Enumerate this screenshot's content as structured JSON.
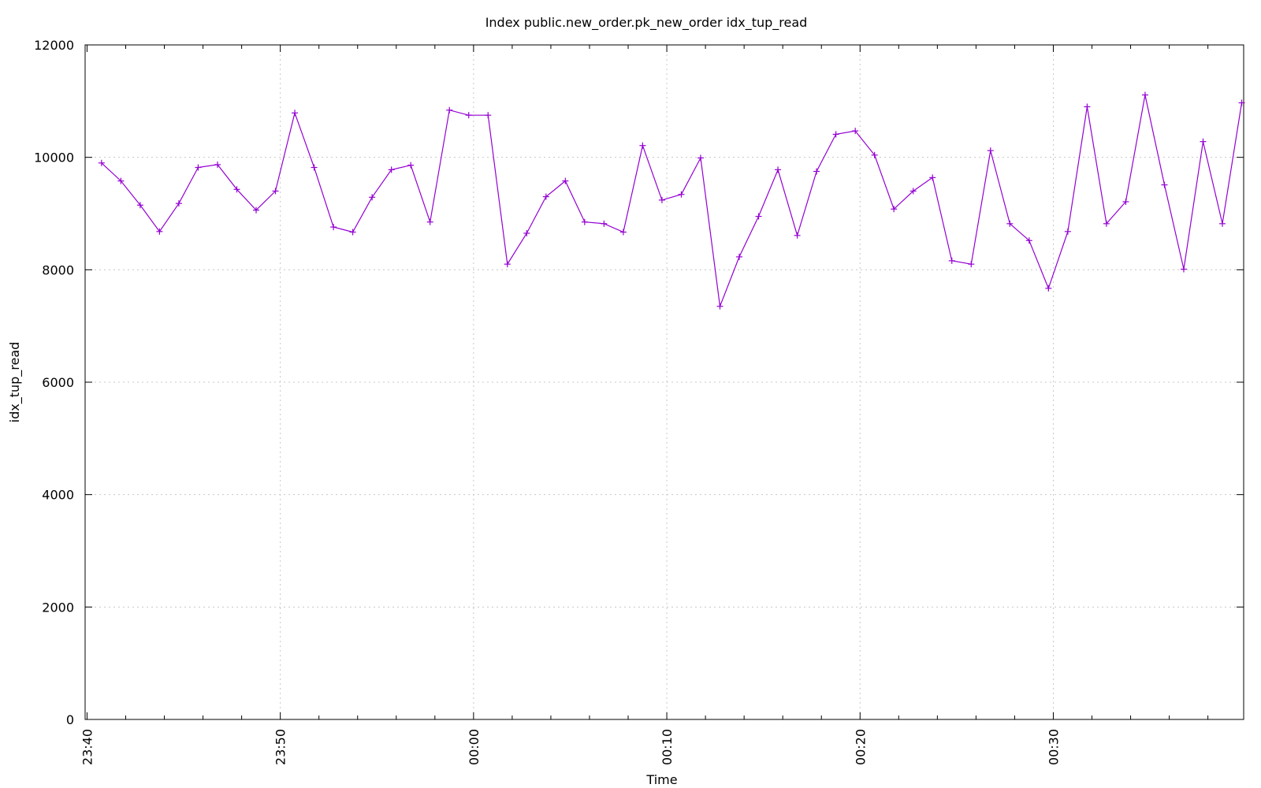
{
  "chart_data": {
    "type": "line",
    "title": "Index public.new_order.pk_new_order idx_tup_read",
    "xlabel": "Time",
    "ylabel": "idx_tup_read",
    "ylim": [
      0,
      12000
    ],
    "yticks": [
      0,
      2000,
      4000,
      6000,
      8000,
      10000,
      12000
    ],
    "xlim_minutes": [
      -0.1,
      59.85
    ],
    "xticks": [
      {
        "label": "23:40",
        "minute": 0
      },
      {
        "label": "23:50",
        "minute": 10
      },
      {
        "label": "00:00",
        "minute": 20
      },
      {
        "label": "00:10",
        "minute": 30
      },
      {
        "label": "00:20",
        "minute": 40
      },
      {
        "label": "00:30",
        "minute": 50
      }
    ],
    "grid": true,
    "series": [
      {
        "color": "#9400d3",
        "marker": "plus",
        "x_minutes": [
          0.75,
          1.75,
          2.75,
          3.75,
          4.75,
          5.75,
          6.75,
          7.75,
          8.75,
          9.75,
          10.75,
          11.75,
          12.75,
          13.75,
          14.75,
          15.75,
          16.75,
          17.75,
          18.75,
          19.75,
          20.75,
          21.75,
          22.75,
          23.75,
          24.75,
          25.75,
          26.75,
          27.75,
          28.75,
          29.75,
          30.75,
          31.75,
          32.75,
          33.75,
          34.75,
          35.75,
          36.75,
          37.75,
          38.75,
          39.75,
          40.75,
          41.75,
          42.75,
          43.75,
          44.75,
          45.75,
          46.75,
          47.75,
          48.75,
          49.75,
          50.75,
          51.75,
          52.75,
          53.75,
          54.75,
          55.75,
          56.75,
          57.75,
          58.75,
          59.75
        ],
        "values": [
          9900,
          9580,
          9150,
          8680,
          9180,
          9820,
          9870,
          9430,
          9060,
          9400,
          10790,
          9820,
          8760,
          8670,
          9290,
          9780,
          9860,
          8850,
          10840,
          10750,
          10750,
          8100,
          8650,
          9300,
          9580,
          8850,
          8820,
          8670,
          10210,
          9240,
          9340,
          9990,
          7350,
          8230,
          8950,
          9780,
          8610,
          9750,
          10410,
          10470,
          10040,
          9080,
          9400,
          9640,
          8160,
          8100,
          10120,
          8820,
          8520,
          7670,
          8680,
          10900,
          8820,
          9210,
          11110,
          9510,
          8010,
          10280,
          8820,
          10970
        ]
      }
    ]
  }
}
